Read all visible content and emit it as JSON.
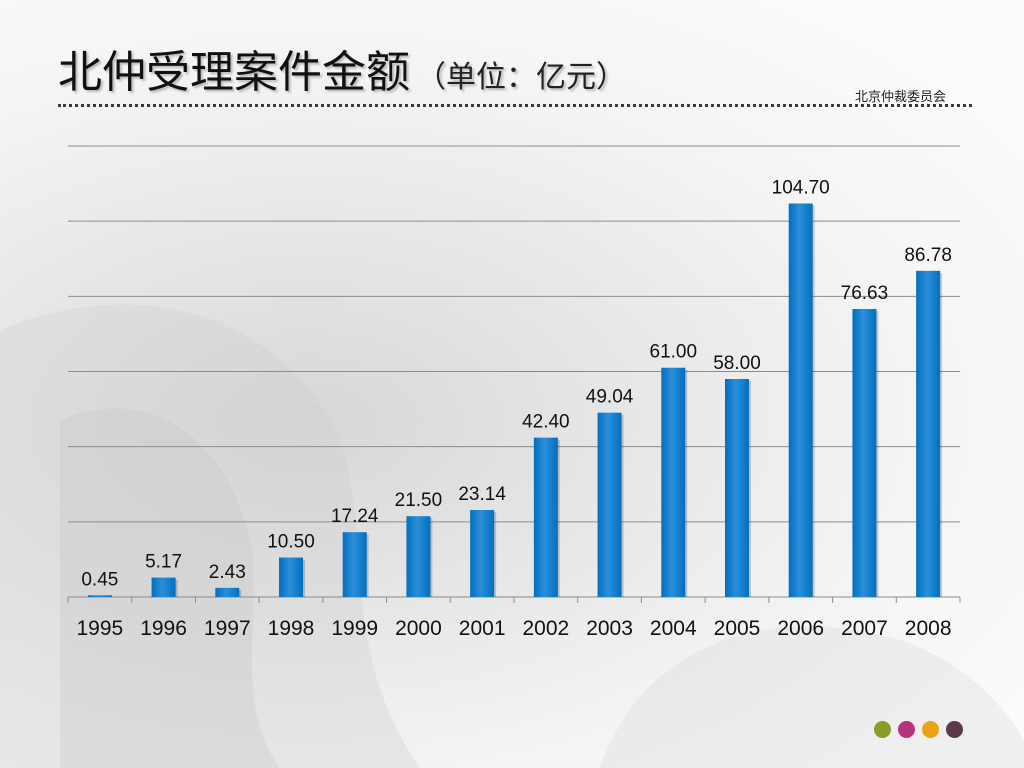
{
  "title": {
    "main": "北仲受理案件金额",
    "unit": "（单位：亿元）"
  },
  "organization": "北京仲裁委员会",
  "colors": {
    "bar": "#0070C0",
    "bar_light": "#2b8fd8",
    "gridline": "#8c8c8c",
    "decor_dots": [
      "#8a9b2a",
      "#b5357a",
      "#e8a317",
      "#5a3a4a"
    ]
  },
  "chart_data": {
    "type": "bar",
    "categories": [
      "1995",
      "1996",
      "1997",
      "1998",
      "1999",
      "2000",
      "2001",
      "2002",
      "2003",
      "2004",
      "2005",
      "2006",
      "2007",
      "2008"
    ],
    "values": [
      0.45,
      5.17,
      2.43,
      10.5,
      17.24,
      21.5,
      23.14,
      42.4,
      49.04,
      61.0,
      58.0,
      104.7,
      76.63,
      86.78
    ],
    "data_labels": [
      "0.45",
      "5.17",
      "2.43",
      "10.50",
      "17.24",
      "21.50",
      "23.14",
      "42.40",
      "49.04",
      "61.00",
      "58.00",
      "104.70",
      "76.63",
      "86.78"
    ],
    "title": "北仲受理案件金额",
    "ylabel": "亿元",
    "ylim": [
      0,
      120
    ],
    "ytick_step": 20,
    "grid": true,
    "legend": "none"
  }
}
